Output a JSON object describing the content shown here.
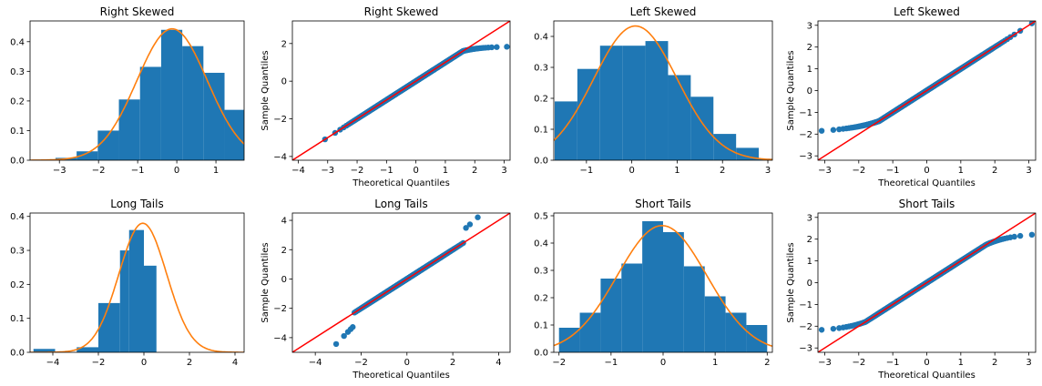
{
  "colors": {
    "bar": "#1f77b4",
    "curve": "#ff7f0e",
    "point": "#1f77b4",
    "ref_line": "#ff0000"
  },
  "chart_data": [
    {
      "type": "bar",
      "title": "Right Skewed",
      "bin_edges": [
        -3.7,
        -3.1,
        -2.56,
        -2.02,
        -1.48,
        -0.94,
        -0.4,
        0.14,
        0.68,
        1.22,
        1.72
      ],
      "values": [
        0.002,
        0.008,
        0.03,
        0.1,
        0.205,
        0.315,
        0.44,
        0.385,
        0.295,
        0.17
      ],
      "curve": {
        "type": "normal_pdf",
        "mean": -0.12,
        "sd": 0.9,
        "label": ""
      },
      "xlim": [
        -3.75,
        1.72
      ],
      "ylim": [
        0,
        0.47
      ],
      "xticks": [
        -3,
        -2,
        -1,
        0,
        1
      ],
      "yticks": [
        0.0,
        0.1,
        0.2,
        0.3,
        0.4
      ],
      "xlabel": "",
      "ylabel": ""
    },
    {
      "type": "scatter",
      "title": "Right Skewed",
      "qq": {
        "kind": "right_skewed",
        "n": 500
      },
      "xlim": [
        -4.2,
        3.2
      ],
      "ylim": [
        -4.2,
        3.2
      ],
      "xticks": [
        -4,
        -3,
        -2,
        -1,
        0,
        1,
        2,
        3
      ],
      "yticks": [
        -4,
        -2,
        0,
        2
      ],
      "xlabel": "Theoretical Quantiles",
      "ylabel": "Sample Quantiles"
    },
    {
      "type": "bar",
      "title": "Left Skewed",
      "bin_edges": [
        -1.7,
        -1.2,
        -0.7,
        -0.2,
        0.3,
        0.8,
        1.3,
        1.8,
        2.3,
        2.8,
        3.3
      ],
      "values": [
        0.19,
        0.295,
        0.37,
        0.37,
        0.385,
        0.275,
        0.205,
        0.085,
        0.04,
        0.005
      ],
      "curve": {
        "type": "normal_pdf",
        "mean": 0.08,
        "sd": 0.92,
        "label": ""
      },
      "xlim": [
        -1.72,
        3.1
      ],
      "ylim": [
        0,
        0.45
      ],
      "xticks": [
        -1,
        0,
        1,
        2,
        3
      ],
      "yticks": [
        0.0,
        0.1,
        0.2,
        0.3,
        0.4
      ],
      "xlabel": "",
      "ylabel": ""
    },
    {
      "type": "scatter",
      "title": "Left Skewed",
      "qq": {
        "kind": "left_skewed",
        "n": 500
      },
      "xlim": [
        -3.2,
        3.2
      ],
      "ylim": [
        -3.2,
        3.2
      ],
      "xticks": [
        -3,
        -2,
        -1,
        0,
        1,
        2,
        3
      ],
      "yticks": [
        -3,
        -2,
        -1,
        0,
        1,
        2,
        3
      ],
      "xlabel": "Theoretical Quantiles",
      "ylabel": "Sample Quantiles"
    },
    {
      "type": "bar",
      "title": "Long Tails",
      "bin_edges": [
        -4.85,
        -3.9,
        -2.95,
        -2.0,
        -1.05,
        -0.65,
        0.0,
        0.55,
        1.35,
        2.15,
        3.0,
        3.85
      ],
      "values": [
        0.01,
        0.0,
        0.015,
        0.145,
        0.3,
        0.36,
        0.255,
        0.0,
        0.0,
        0.0,
        0.0
      ],
      "curve": {
        "type": "normal_pdf",
        "mean": -0.05,
        "sd": 1.05,
        "label": ""
      },
      "xlim": [
        -5.0,
        4.4
      ],
      "ylim": [
        0,
        0.41
      ],
      "xticks": [
        -4,
        -2,
        0,
        2,
        4
      ],
      "yticks": [
        0.0,
        0.1,
        0.2,
        0.3,
        0.4
      ],
      "xlabel": "",
      "ylabel": ""
    },
    {
      "type": "scatter",
      "title": "Long Tails",
      "qq": {
        "kind": "long_tails",
        "n": 500
      },
      "xlim": [
        -5.0,
        4.5
      ],
      "ylim": [
        -5.0,
        4.5
      ],
      "xticks": [
        -4,
        -2,
        0,
        2,
        4
      ],
      "yticks": [
        -4,
        -2,
        0,
        2,
        4
      ],
      "xlabel": "Theoretical Quantiles",
      "ylabel": "Sample Quantiles"
    },
    {
      "type": "bar",
      "title": "Short Tails",
      "bin_edges": [
        -2.0,
        -1.6,
        -1.2,
        -0.8,
        -0.4,
        0.0,
        0.4,
        0.8,
        1.2,
        1.6,
        2.0
      ],
      "values": [
        0.09,
        0.145,
        0.27,
        0.325,
        0.48,
        0.44,
        0.315,
        0.205,
        0.145,
        0.1
      ],
      "curve": {
        "type": "normal_pdf",
        "mean": -0.02,
        "sd": 0.86,
        "label": ""
      },
      "xlim": [
        -2.1,
        2.1
      ],
      "ylim": [
        0,
        0.51
      ],
      "xticks": [
        -2,
        -1,
        0,
        1,
        2
      ],
      "yticks": [
        0.0,
        0.1,
        0.2,
        0.3,
        0.4,
        0.5
      ],
      "xlabel": "",
      "ylabel": ""
    },
    {
      "type": "scatter",
      "title": "Short Tails",
      "qq": {
        "kind": "short_tails",
        "n": 500
      },
      "xlim": [
        -3.2,
        3.2
      ],
      "ylim": [
        -3.2,
        3.2
      ],
      "xticks": [
        -3,
        -2,
        -1,
        0,
        1,
        2,
        3
      ],
      "yticks": [
        -3,
        -2,
        -1,
        0,
        1,
        2,
        3
      ],
      "xlabel": "Theoretical Quantiles",
      "ylabel": "Sample Quantiles"
    }
  ]
}
